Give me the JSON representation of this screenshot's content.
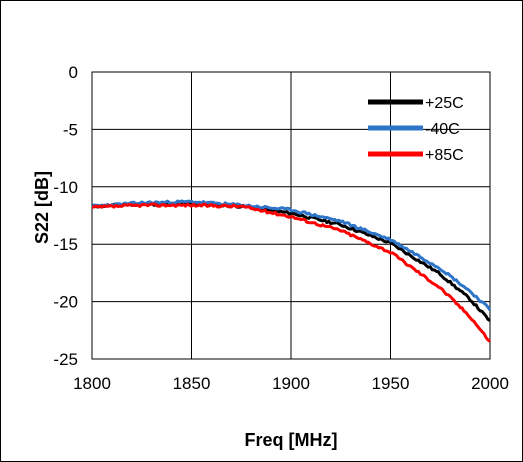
{
  "chart_data": {
    "type": "line",
    "title": "",
    "xlabel": "Freq [MHz]",
    "ylabel": "S22 [dB]",
    "xlim": [
      1800,
      2000
    ],
    "ylim": [
      -25,
      0
    ],
    "xticks": [
      "1800",
      "1850",
      "1900",
      "1950",
      "2000"
    ],
    "yticks": [
      "0",
      "-5",
      "-10",
      "-15",
      "-20",
      "-25"
    ],
    "grid": true,
    "legend_position": "top-right",
    "x": [
      1800,
      1825,
      1850,
      1875,
      1900,
      1925,
      1950,
      1975,
      1990,
      2000
    ],
    "series": [
      {
        "name": "+25C",
        "color": "#000000",
        "values": [
          -11.7,
          -11.5,
          -11.5,
          -11.7,
          -12.3,
          -13.3,
          -14.9,
          -17.6,
          -19.8,
          -21.7
        ]
      },
      {
        "name": "-40C",
        "color": "#2e75c8",
        "values": [
          -11.7,
          -11.4,
          -11.3,
          -11.6,
          -12.0,
          -13.0,
          -14.6,
          -17.1,
          -19.1,
          -20.7
        ]
      },
      {
        "name": "+85C",
        "color": "#ff0000",
        "values": [
          -11.8,
          -11.6,
          -11.6,
          -11.7,
          -12.6,
          -13.8,
          -15.7,
          -18.8,
          -21.3,
          -23.5
        ]
      }
    ]
  }
}
